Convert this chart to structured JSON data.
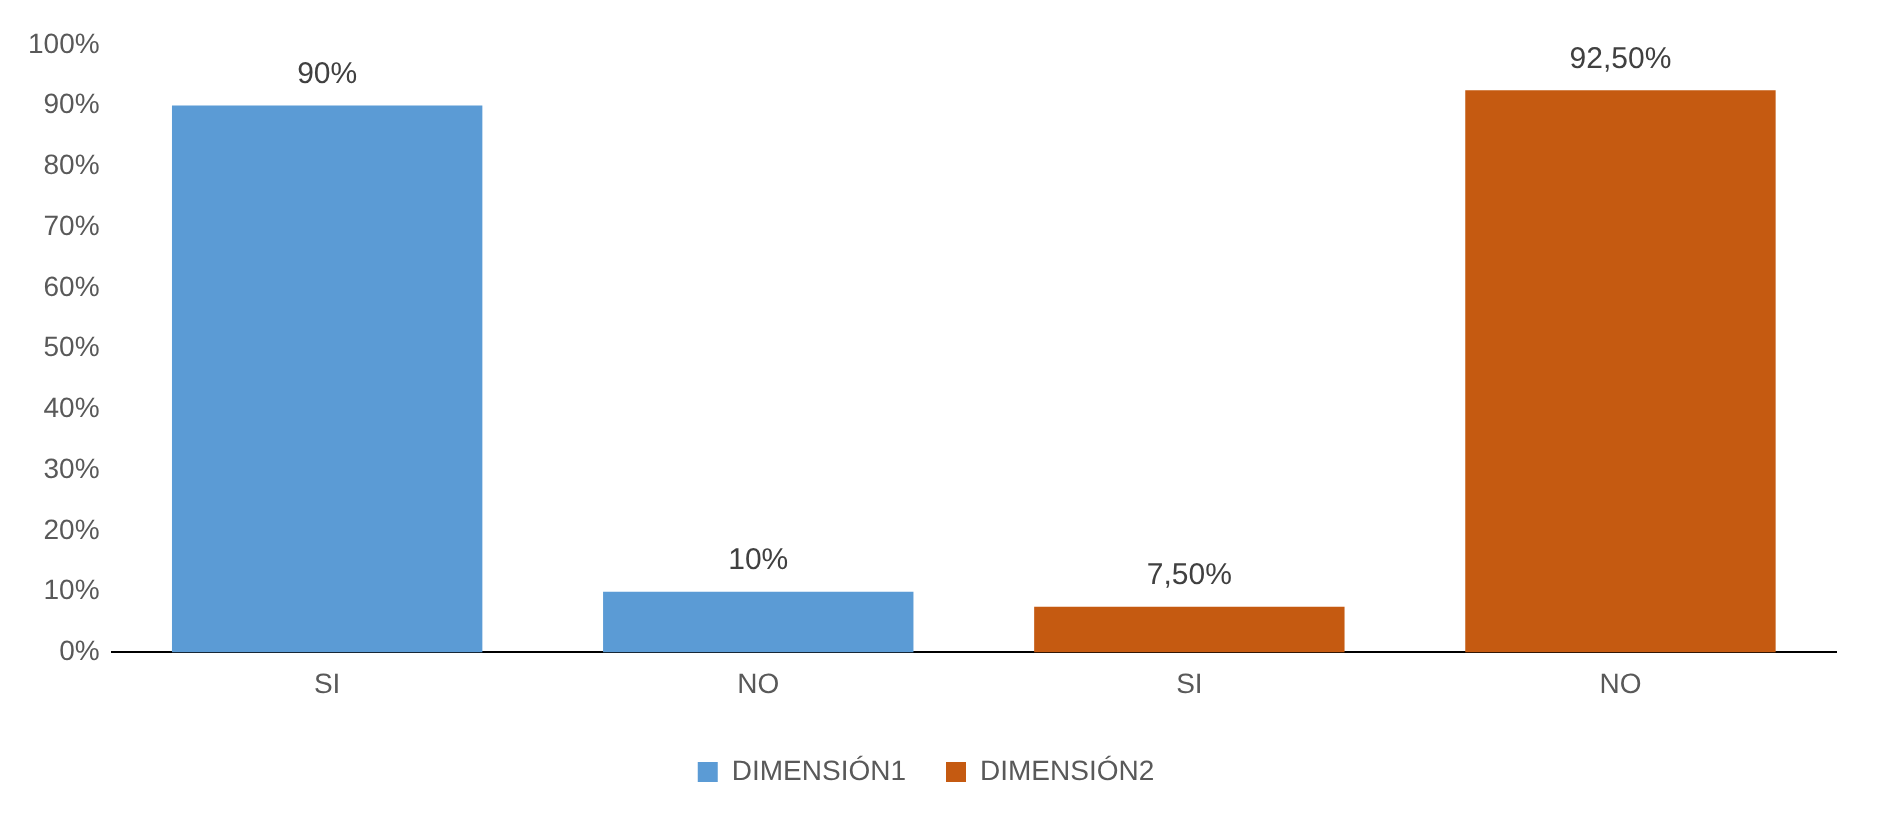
{
  "chart_data": {
    "type": "bar",
    "categories": [
      "SI",
      "NO",
      "SI",
      "NO"
    ],
    "series": [
      {
        "name": "DIMENSIÓN1",
        "color": "#5b9bd5",
        "values": [
          90,
          10,
          null,
          null
        ],
        "value_labels": [
          "90%",
          "10%",
          null,
          null
        ]
      },
      {
        "name": "DIMENSIÓN2",
        "color": "#c55a11",
        "values": [
          null,
          null,
          7.5,
          92.5
        ],
        "value_labels": [
          null,
          null,
          "7,50%",
          "92,50%"
        ]
      }
    ],
    "ylim": [
      0,
      100
    ],
    "yticks": [
      {
        "value": 0,
        "label": "0%"
      },
      {
        "value": 10,
        "label": "10%"
      },
      {
        "value": 20,
        "label": "20%"
      },
      {
        "value": 30,
        "label": "30%"
      },
      {
        "value": 40,
        "label": "40%"
      },
      {
        "value": 50,
        "label": "50%"
      },
      {
        "value": 60,
        "label": "60%"
      },
      {
        "value": 70,
        "label": "70%"
      },
      {
        "value": 80,
        "label": "80%"
      },
      {
        "value": 90,
        "label": "90%"
      },
      {
        "value": 100,
        "label": "100%"
      }
    ],
    "grid": false,
    "legend": "bottom"
  }
}
